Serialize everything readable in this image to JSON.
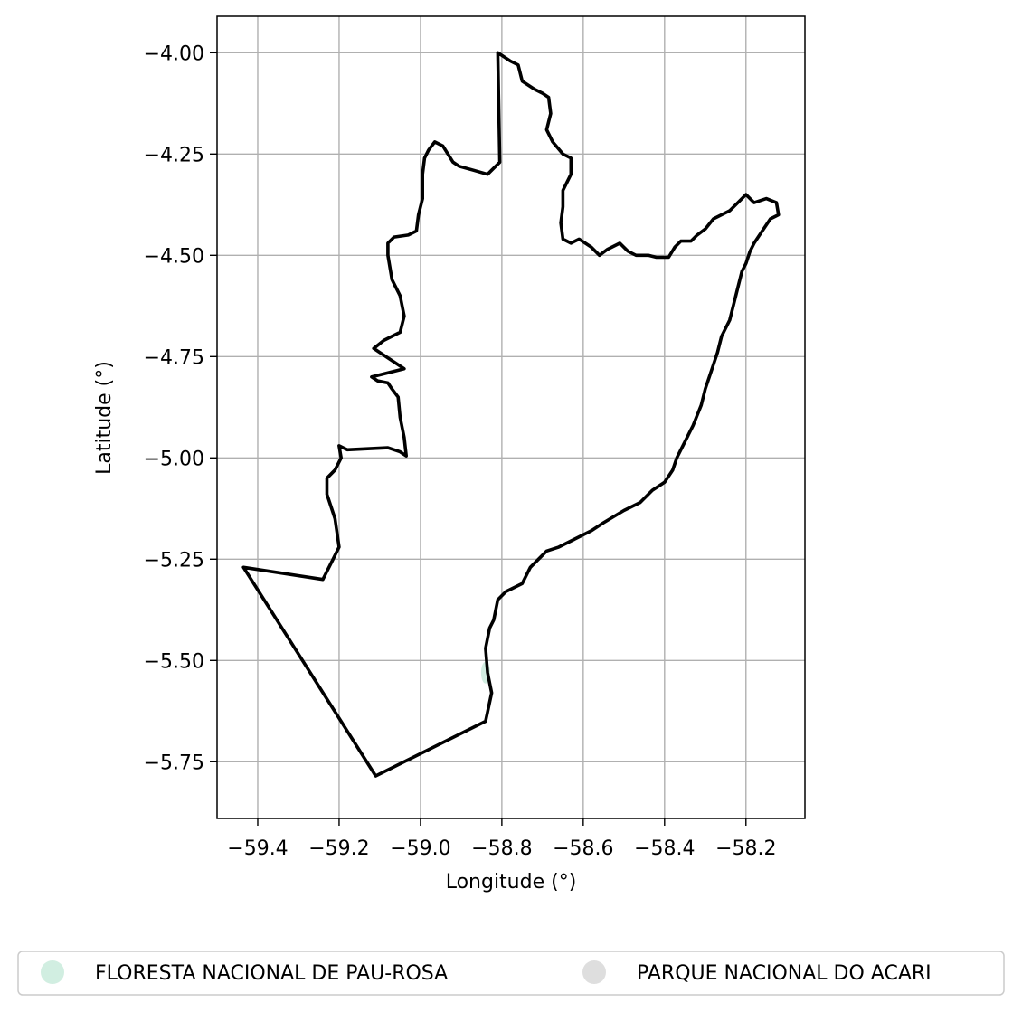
{
  "chart_data": {
    "type": "map",
    "title": "",
    "xlabel": "Longitude (°)",
    "ylabel": "Latitude (°)",
    "xlim": [
      -59.5,
      -58.055
    ],
    "ylim": [
      -5.89,
      -3.91
    ],
    "grid": true,
    "x_ticks": [
      -59.4,
      -59.2,
      -59.0,
      -58.8,
      -58.6,
      -58.4,
      -58.2
    ],
    "x_tick_labels": [
      "−59.4",
      "−59.2",
      "−59.0",
      "−58.8",
      "−58.6",
      "−58.4",
      "−58.2"
    ],
    "y_ticks": [
      -4.0,
      -4.25,
      -4.5,
      -4.75,
      -5.0,
      -5.25,
      -5.5,
      -5.75
    ],
    "y_tick_labels": [
      "−4.00",
      "−4.25",
      "−4.50",
      "−4.75",
      "−5.00",
      "−5.25",
      "−5.50",
      "−5.75"
    ],
    "legend": {
      "placement": "bottom",
      "entries": [
        {
          "label": "FLORESTA NACIONAL DE PAU-ROSA",
          "color": "#d1eee1"
        },
        {
          "label": "PARQUE NACIONAL DO ACARI",
          "color": "#dedede"
        }
      ]
    },
    "boundary_color": "#000000",
    "boundary": [
      [
        -58.81,
        -4.0
      ],
      [
        -58.78,
        -4.02
      ],
      [
        -58.76,
        -4.03
      ],
      [
        -58.75,
        -4.07
      ],
      [
        -58.72,
        -4.09
      ],
      [
        -58.7,
        -4.1
      ],
      [
        -58.685,
        -4.11
      ],
      [
        -58.68,
        -4.15
      ],
      [
        -58.69,
        -4.19
      ],
      [
        -58.675,
        -4.22
      ],
      [
        -58.65,
        -4.25
      ],
      [
        -58.63,
        -4.26
      ],
      [
        -58.63,
        -4.3
      ],
      [
        -58.65,
        -4.34
      ],
      [
        -58.65,
        -4.38
      ],
      [
        -58.655,
        -4.42
      ],
      [
        -58.65,
        -4.46
      ],
      [
        -58.63,
        -4.47
      ],
      [
        -58.61,
        -4.46
      ],
      [
        -58.58,
        -4.48
      ],
      [
        -58.56,
        -4.5
      ],
      [
        -58.54,
        -4.485
      ],
      [
        -58.51,
        -4.47
      ],
      [
        -58.49,
        -4.49
      ],
      [
        -58.47,
        -4.5
      ],
      [
        -58.44,
        -4.5
      ],
      [
        -58.42,
        -4.505
      ],
      [
        -58.39,
        -4.505
      ],
      [
        -58.375,
        -4.48
      ],
      [
        -58.36,
        -4.465
      ],
      [
        -58.335,
        -4.465
      ],
      [
        -58.32,
        -4.45
      ],
      [
        -58.3,
        -4.435
      ],
      [
        -58.28,
        -4.41
      ],
      [
        -58.26,
        -4.4
      ],
      [
        -58.24,
        -4.39
      ],
      [
        -58.22,
        -4.37
      ],
      [
        -58.2,
        -4.35
      ],
      [
        -58.18,
        -4.37
      ],
      [
        -58.15,
        -4.36
      ],
      [
        -58.125,
        -4.37
      ],
      [
        -58.12,
        -4.4
      ],
      [
        -58.14,
        -4.41
      ],
      [
        -58.16,
        -4.44
      ],
      [
        -58.18,
        -4.47
      ],
      [
        -58.19,
        -4.49
      ],
      [
        -58.2,
        -4.52
      ],
      [
        -58.21,
        -4.54
      ],
      [
        -58.22,
        -4.58
      ],
      [
        -58.23,
        -4.62
      ],
      [
        -58.24,
        -4.66
      ],
      [
        -58.26,
        -4.7
      ],
      [
        -58.27,
        -4.74
      ],
      [
        -58.29,
        -4.8
      ],
      [
        -58.3,
        -4.83
      ],
      [
        -58.31,
        -4.87
      ],
      [
        -58.33,
        -4.92
      ],
      [
        -58.35,
        -4.96
      ],
      [
        -58.37,
        -5.0
      ],
      [
        -58.38,
        -5.03
      ],
      [
        -58.4,
        -5.06
      ],
      [
        -58.43,
        -5.08
      ],
      [
        -58.46,
        -5.11
      ],
      [
        -58.5,
        -5.13
      ],
      [
        -58.55,
        -5.16
      ],
      [
        -58.58,
        -5.18
      ],
      [
        -58.62,
        -5.2
      ],
      [
        -58.66,
        -5.22
      ],
      [
        -58.69,
        -5.23
      ],
      [
        -58.73,
        -5.27
      ],
      [
        -58.75,
        -5.31
      ],
      [
        -58.79,
        -5.33
      ],
      [
        -58.81,
        -5.35
      ],
      [
        -58.82,
        -5.4
      ],
      [
        -58.83,
        -5.42
      ],
      [
        -58.84,
        -5.47
      ],
      [
        -58.835,
        -5.53
      ],
      [
        -58.825,
        -5.58
      ],
      [
        -58.84,
        -5.65
      ],
      [
        -59.11,
        -5.785
      ],
      [
        -59.435,
        -5.27
      ],
      [
        -59.24,
        -5.3
      ],
      [
        -59.22,
        -5.26
      ],
      [
        -59.2,
        -5.22
      ],
      [
        -59.21,
        -5.15
      ],
      [
        -59.23,
        -5.09
      ],
      [
        -59.23,
        -5.05
      ],
      [
        -59.21,
        -5.03
      ],
      [
        -59.195,
        -5.0
      ],
      [
        -59.2,
        -4.97
      ],
      [
        -59.18,
        -4.98
      ],
      [
        -59.08,
        -4.975
      ],
      [
        -59.05,
        -4.985
      ],
      [
        -59.035,
        -4.995
      ],
      [
        -59.04,
        -4.95
      ],
      [
        -59.05,
        -4.9
      ],
      [
        -59.055,
        -4.85
      ],
      [
        -59.07,
        -4.83
      ],
      [
        -59.08,
        -4.815
      ],
      [
        -59.105,
        -4.81
      ],
      [
        -59.12,
        -4.8
      ],
      [
        -59.04,
        -4.78
      ],
      [
        -59.07,
        -4.76
      ],
      [
        -59.1,
        -4.74
      ],
      [
        -59.115,
        -4.73
      ],
      [
        -59.09,
        -4.71
      ],
      [
        -59.05,
        -4.69
      ],
      [
        -59.04,
        -4.65
      ],
      [
        -59.05,
        -4.6
      ],
      [
        -59.07,
        -4.56
      ],
      [
        -59.08,
        -4.5
      ],
      [
        -59.08,
        -4.47
      ],
      [
        -59.065,
        -4.455
      ],
      [
        -59.03,
        -4.45
      ],
      [
        -59.01,
        -4.44
      ],
      [
        -59.005,
        -4.4
      ],
      [
        -58.995,
        -4.36
      ],
      [
        -58.995,
        -4.3
      ],
      [
        -58.99,
        -4.26
      ],
      [
        -58.98,
        -4.24
      ],
      [
        -58.965,
        -4.22
      ],
      [
        -58.945,
        -4.23
      ],
      [
        -58.92,
        -4.27
      ],
      [
        -58.905,
        -4.28
      ],
      [
        -58.87,
        -4.29
      ],
      [
        -58.835,
        -4.3
      ],
      [
        -58.805,
        -4.27
      ],
      [
        -58.81,
        -4.0
      ]
    ],
    "inner_marks": [
      {
        "lon": -58.84,
        "lat": -5.53,
        "color": "#d1eee1"
      }
    ]
  }
}
